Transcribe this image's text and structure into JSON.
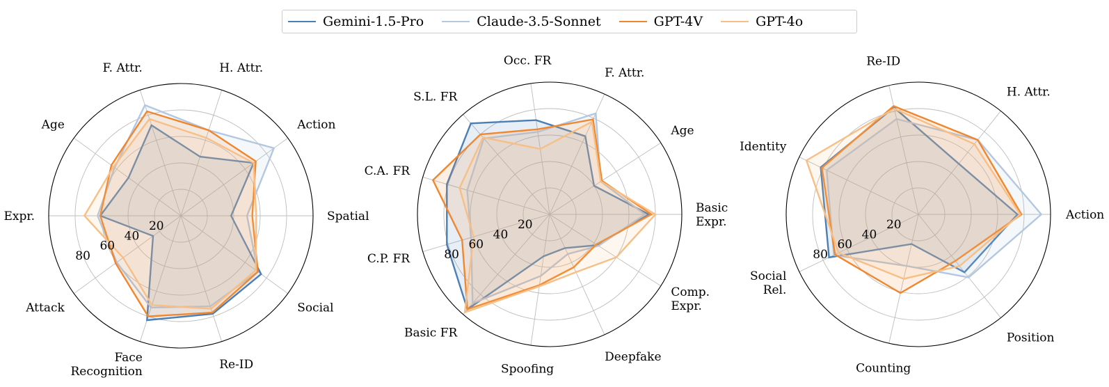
{
  "colors": {
    "Gemini-1.5-Pro": "#4a7fb5",
    "Claude-3.5-Sonnet": "#b3c7e0",
    "GPT-4V": "#f0872e",
    "GPT-4o": "#f7bf86"
  },
  "legend": [
    {
      "label": "Gemini-1.5-Pro"
    },
    {
      "label": "Claude-3.5-Sonnet"
    },
    {
      "label": "GPT-4V"
    },
    {
      "label": "GPT-4o"
    }
  ],
  "chart_data": [
    {
      "type": "radar",
      "categories": [
        "Spatial",
        "Action",
        "H. Attr.",
        "F. Attr.",
        "Age",
        "Expr.",
        "Attack",
        "Face\nRecognition",
        "Re-ID",
        "Social"
      ],
      "radial_ticks": [
        "20",
        "40",
        "60",
        "80"
      ],
      "rlim": [
        0,
        100
      ],
      "series": [
        {
          "name": "Gemini-1.5-Pro",
          "values": [
            38,
            68,
            47,
            72,
            49,
            61,
            26,
            83,
            78,
            75
          ]
        },
        {
          "name": "Claude-3.5-Sonnet",
          "values": [
            50,
            87,
            68,
            88,
            62,
            63,
            60,
            73,
            72,
            72
          ]
        },
        {
          "name": "GPT-4V",
          "values": [
            54,
            70,
            68,
            83,
            65,
            61,
            61,
            80,
            77,
            72
          ]
        },
        {
          "name": "GPT-4o",
          "values": [
            57,
            68,
            62,
            77,
            63,
            73,
            54,
            71,
            74,
            70
          ]
        }
      ]
    },
    {
      "type": "radar",
      "categories": [
        "Basic\nExpr.",
        "Age",
        "F. Attr.",
        "Occ. FR",
        "S.L. FR",
        "C.A. FR",
        "C.P. FR",
        "Basic FR",
        "Spoofing",
        "Deepfake",
        "Comp.\nExpr."
      ],
      "radial_ticks": [
        "20",
        "40",
        "60",
        "80"
      ],
      "rlim": [
        0,
        100
      ],
      "series": [
        {
          "name": "Gemini-1.5-Pro",
          "values": [
            75,
            40,
            65,
            72,
            91,
            81,
            81,
            95,
            32,
            28,
            43
          ]
        },
        {
          "name": "Claude-3.5-Sonnet",
          "values": [
            72,
            46,
            84,
            63,
            76,
            65,
            62,
            89,
            47,
            33,
            44
          ]
        },
        {
          "name": "GPT-4V",
          "values": [
            77,
            47,
            79,
            65,
            80,
            92,
            69,
            95,
            54,
            44,
            42
          ]
        },
        {
          "name": "GPT-4o",
          "values": [
            80,
            46,
            77,
            50,
            77,
            71,
            60,
            98,
            55,
            48,
            60
          ]
        }
      ]
    },
    {
      "type": "radar",
      "categories": [
        "Action",
        "H. Attr.",
        "Re-ID",
        "Identity",
        "Social\nRel.",
        "Counting",
        "Position"
      ],
      "radial_ticks": [
        "20",
        "40",
        "60",
        "80"
      ],
      "rlim": [
        0,
        100
      ],
      "series": [
        {
          "name": "Gemini-1.5-Pro",
          "values": [
            75,
            49,
            83,
            82,
            75,
            23,
            56
          ]
        },
        {
          "name": "Claude-3.5-Sonnet",
          "values": [
            93,
            72,
            74,
            77,
            71,
            40,
            61
          ]
        },
        {
          "name": "GPT-4V",
          "values": [
            78,
            72,
            84,
            81,
            70,
            61,
            45
          ]
        },
        {
          "name": "GPT-4o",
          "values": [
            77,
            68,
            82,
            94,
            67,
            50,
            50
          ]
        }
      ]
    }
  ]
}
